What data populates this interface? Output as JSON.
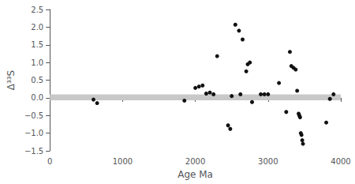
{
  "chart_data": {
    "type": "scatter",
    "x": [
      600,
      650,
      1850,
      2000,
      2050,
      2100,
      2150,
      2200,
      2250,
      2300,
      2450,
      2480,
      2500,
      2550,
      2600,
      2620,
      2650,
      2700,
      2720,
      2750,
      2780,
      2900,
      2950,
      3000,
      3150,
      3250,
      3300,
      3320,
      3350,
      3380,
      3400,
      3420,
      3430,
      3440,
      3450,
      3460,
      3470,
      3480,
      3800,
      3850,
      3900
    ],
    "values": [
      -0.05,
      -0.15,
      -0.08,
      0.28,
      0.32,
      0.35,
      0.12,
      0.15,
      0.1,
      1.18,
      -0.78,
      -0.88,
      0.05,
      2.07,
      1.9,
      0.1,
      1.65,
      0.75,
      0.95,
      1.0,
      -0.12,
      0.1,
      0.1,
      0.1,
      0.42,
      -0.4,
      1.3,
      0.9,
      0.85,
      0.8,
      0.2,
      -0.45,
      -0.5,
      -0.55,
      -1.0,
      -1.05,
      -1.2,
      -1.3,
      -0.7,
      -0.03,
      0.1
    ],
    "color": "#111111",
    "xlabel": "Age Ma",
    "ylabel": "Δ³³S",
    "xlim": [
      0,
      4000
    ],
    "ylim": [
      -1.5,
      2.5
    ],
    "xticks": [
      0,
      1000,
      2000,
      3000,
      4000
    ],
    "yticks": [
      {
        "value": -1.5,
        "label": "−1.5"
      },
      {
        "value": -1.0,
        "label": "−1.0"
      },
      {
        "value": -0.5,
        "label": "−0.5"
      },
      {
        "value": 0.0,
        "label": "0.0"
      },
      {
        "value": 0.5,
        "label": "0.5"
      },
      {
        "value": 1.0,
        "label": "1.0"
      },
      {
        "value": 1.5,
        "label": "1.5"
      },
      {
        "value": 2.0,
        "label": "2.0"
      },
      {
        "value": 2.5,
        "label": "2.5"
      }
    ],
    "band": {
      "ymin": -0.07,
      "ymax": 0.1,
      "color": "#c8c8c8"
    },
    "grid": false
  }
}
